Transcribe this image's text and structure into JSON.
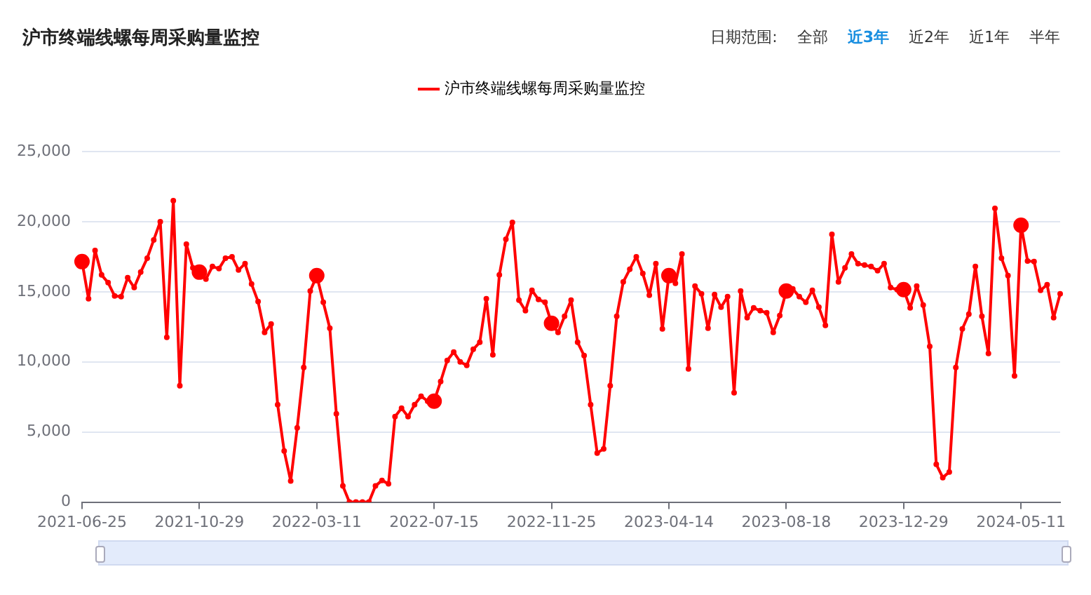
{
  "chart_data": {
    "type": "line",
    "title": "沪市终端线螺每周采购量监控",
    "annotations": [
      "日期范围:",
      "全部",
      "近3年",
      "近2年",
      "近1年",
      "半年"
    ],
    "categories": [
      "2021-06-25",
      null,
      null,
      null,
      null,
      null,
      null,
      null,
      null,
      null,
      null,
      null,
      null,
      null,
      null,
      null,
      null,
      null,
      "2021-10-29",
      null,
      null,
      null,
      null,
      null,
      null,
      null,
      null,
      null,
      null,
      null,
      null,
      null,
      null,
      null,
      null,
      null,
      "2022-03-11",
      null,
      null,
      null,
      null,
      null,
      null,
      null,
      null,
      null,
      null,
      null,
      null,
      null,
      null,
      null,
      null,
      null,
      "2022-07-15",
      null,
      null,
      null,
      null,
      null,
      null,
      null,
      null,
      null,
      null,
      null,
      null,
      null,
      null,
      null,
      null,
      null,
      "2022-11-25",
      null,
      null,
      null,
      null,
      null,
      null,
      null,
      null,
      null,
      null,
      null,
      null,
      null,
      null,
      null,
      null,
      null,
      "2023-04-14",
      null,
      null,
      null,
      null,
      null,
      null,
      null,
      null,
      null,
      null,
      null,
      null,
      null,
      null,
      null,
      null,
      null,
      "2023-08-18",
      null,
      null,
      null,
      null,
      null,
      null,
      null,
      null,
      null,
      null,
      null,
      null,
      null,
      null,
      null,
      null,
      null,
      "2023-12-29",
      null,
      null,
      null,
      null,
      null,
      null,
      null,
      null,
      null,
      null,
      null,
      null,
      null,
      null,
      null,
      null,
      null,
      "2024-05-11",
      null,
      null,
      null,
      null,
      null,
      null
    ],
    "series": [
      {
        "name": "沪市终端线螺每周采购量监控",
        "color": "#ff0000",
        "values": [
          17150,
          14500,
          17950,
          16200,
          15650,
          14700,
          14650,
          16000,
          15300,
          16400,
          17400,
          18700,
          20000,
          11750,
          21500,
          8300,
          18400,
          16700,
          16400,
          15900,
          16800,
          16650,
          17400,
          17500,
          16550,
          17000,
          15550,
          14300,
          12100,
          12700,
          6950,
          3650,
          1500,
          5300,
          9600,
          15050,
          16150,
          14250,
          12400,
          6300,
          1150,
          0,
          0,
          0,
          0,
          1150,
          1550,
          1300,
          6100,
          6700,
          6100,
          6950,
          7550,
          7200,
          7200,
          8600,
          10100,
          10700,
          10000,
          9750,
          10900,
          11400,
          14500,
          10500,
          16200,
          18750,
          19950,
          14400,
          13650,
          15100,
          14450,
          14250,
          12750,
          12100,
          13250,
          14400,
          11400,
          10450,
          6950,
          3500,
          3800,
          8300,
          13250,
          15700,
          16600,
          17500,
          16300,
          14750,
          17000,
          12350,
          16150,
          15600,
          17700,
          9500,
          15400,
          14850,
          12400,
          14800,
          13900,
          14650,
          7800,
          15050,
          13150,
          13850,
          13650,
          13500,
          12100,
          13300,
          15050,
          15200,
          14650,
          14250,
          15100,
          13900,
          12600,
          19100,
          15700,
          16700,
          17700,
          17000,
          16900,
          16800,
          16500,
          17000,
          15300,
          15150,
          15150,
          13850,
          15400,
          14050,
          11100,
          2700,
          1750,
          2150,
          9600,
          12350,
          13400,
          16800,
          13250,
          10600,
          20950,
          17400,
          16150,
          9000,
          19750,
          17200,
          17150,
          15100,
          15500,
          13150,
          14850
        ]
      }
    ],
    "ylim": [
      0,
      25000
    ],
    "yticks": [
      0,
      {
        "value": 5000,
        "label": "5,000"
      },
      {
        "value": 10000,
        "label": "10,000"
      },
      {
        "value": 15000,
        "label": "15,000"
      },
      {
        "value": 20000,
        "label": "20,000"
      },
      {
        "value": 25000,
        "label": "25,000"
      }
    ],
    "grid": "y",
    "legend": "top",
    "marker": "circle",
    "line_style": "solid"
  }
}
